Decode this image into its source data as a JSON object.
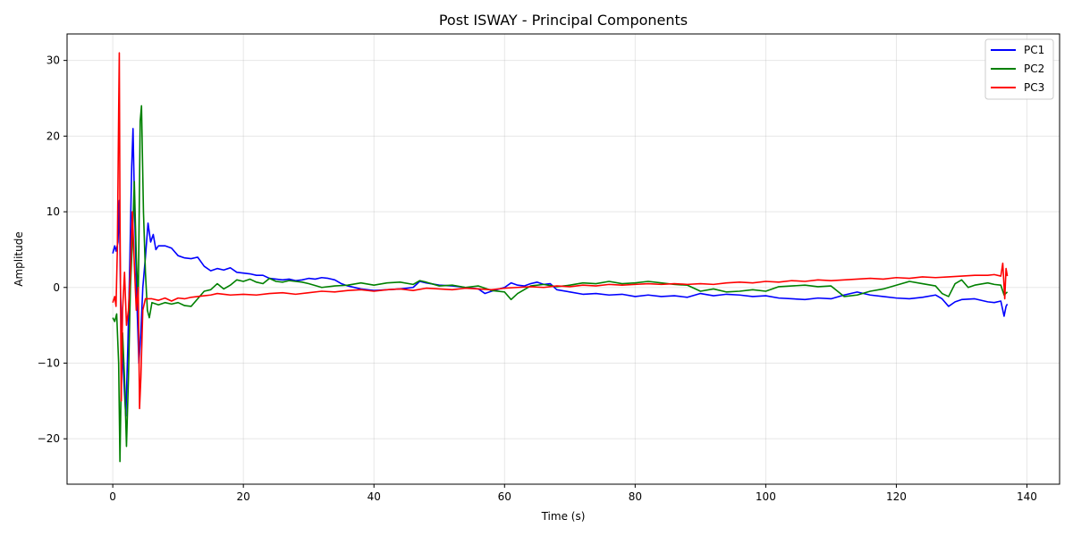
{
  "chart_data": {
    "type": "line",
    "title": "Post ISWAY - Principal Components",
    "xlabel": "Time (s)",
    "ylabel": "Amplitude",
    "xlim": [
      -7,
      145
    ],
    "ylim": [
      -26,
      33.5
    ],
    "xticks": [
      0,
      20,
      40,
      60,
      80,
      100,
      120,
      140
    ],
    "yticks": [
      -20,
      -10,
      0,
      10,
      20,
      30
    ],
    "xtick_labels": [
      "0",
      "20",
      "40",
      "60",
      "80",
      "100",
      "120",
      "140"
    ],
    "ytick_labels": [
      "−20",
      "−10",
      "0",
      "10",
      "20",
      "30"
    ],
    "grid": true,
    "legend": "top-right",
    "series": [
      {
        "name": "PC1",
        "color": "#0000ff",
        "points": [
          [
            0,
            4.5
          ],
          [
            0.3,
            5.5
          ],
          [
            0.5,
            4.8
          ],
          [
            0.8,
            6
          ],
          [
            1.0,
            11.5
          ],
          [
            1.2,
            -1
          ],
          [
            1.5,
            -9
          ],
          [
            1.8,
            -14
          ],
          [
            2.0,
            -17
          ],
          [
            2.3,
            -8
          ],
          [
            2.6,
            3
          ],
          [
            2.9,
            16
          ],
          [
            3.1,
            21
          ],
          [
            3.4,
            8
          ],
          [
            3.7,
            -2
          ],
          [
            4.0,
            -10
          ],
          [
            4.3,
            -6
          ],
          [
            4.6,
            0
          ],
          [
            5.0,
            4
          ],
          [
            5.4,
            8.5
          ],
          [
            5.8,
            6
          ],
          [
            6.2,
            7
          ],
          [
            6.6,
            5
          ],
          [
            7,
            5.5
          ],
          [
            8,
            5.5
          ],
          [
            9,
            5.2
          ],
          [
            10,
            4.2
          ],
          [
            11,
            3.9
          ],
          [
            12,
            3.8
          ],
          [
            13,
            4
          ],
          [
            14,
            2.8
          ],
          [
            15,
            2.2
          ],
          [
            16,
            2.5
          ],
          [
            17,
            2.3
          ],
          [
            18,
            2.6
          ],
          [
            19,
            2
          ],
          [
            20,
            1.9
          ],
          [
            21,
            1.8
          ],
          [
            22,
            1.6
          ],
          [
            23,
            1.6
          ],
          [
            24,
            1.2
          ],
          [
            25,
            1.1
          ],
          [
            26,
            1.0
          ],
          [
            27,
            1.1
          ],
          [
            28,
            0.9
          ],
          [
            29,
            1.0
          ],
          [
            30,
            1.2
          ],
          [
            31,
            1.1
          ],
          [
            32,
            1.3
          ],
          [
            33,
            1.2
          ],
          [
            34,
            1.0
          ],
          [
            35,
            0.5
          ],
          [
            36,
            0.2
          ],
          [
            38,
            -0.2
          ],
          [
            40,
            -0.4
          ],
          [
            42,
            -0.3
          ],
          [
            44,
            -0.2
          ],
          [
            46,
            0
          ],
          [
            47,
            0.8
          ],
          [
            48,
            0.6
          ],
          [
            50,
            0.3
          ],
          [
            52,
            0.2
          ],
          [
            54,
            0
          ],
          [
            56,
            -0.2
          ],
          [
            57,
            -0.8
          ],
          [
            58,
            -0.5
          ],
          [
            60,
            0
          ],
          [
            61,
            0.6
          ],
          [
            62,
            0.3
          ],
          [
            63,
            0.2
          ],
          [
            64,
            0.5
          ],
          [
            65,
            0.7
          ],
          [
            66,
            0.4
          ],
          [
            67,
            0.5
          ],
          [
            68,
            -0.3
          ],
          [
            70,
            -0.6
          ],
          [
            72,
            -0.9
          ],
          [
            74,
            -0.8
          ],
          [
            76,
            -1.0
          ],
          [
            78,
            -0.9
          ],
          [
            80,
            -1.2
          ],
          [
            82,
            -1.0
          ],
          [
            84,
            -1.2
          ],
          [
            86,
            -1.1
          ],
          [
            88,
            -1.3
          ],
          [
            90,
            -0.8
          ],
          [
            92,
            -1.1
          ],
          [
            94,
            -0.9
          ],
          [
            96,
            -1.0
          ],
          [
            98,
            -1.2
          ],
          [
            100,
            -1.1
          ],
          [
            102,
            -1.4
          ],
          [
            104,
            -1.5
          ],
          [
            106,
            -1.6
          ],
          [
            108,
            -1.4
          ],
          [
            110,
            -1.5
          ],
          [
            112,
            -1.0
          ],
          [
            114,
            -0.6
          ],
          [
            116,
            -1.0
          ],
          [
            118,
            -1.2
          ],
          [
            120,
            -1.4
          ],
          [
            122,
            -1.5
          ],
          [
            124,
            -1.3
          ],
          [
            126,
            -1.0
          ],
          [
            127,
            -1.5
          ],
          [
            128,
            -2.5
          ],
          [
            129,
            -1.9
          ],
          [
            130,
            -1.6
          ],
          [
            132,
            -1.5
          ],
          [
            134,
            -1.9
          ],
          [
            135,
            -2.0
          ],
          [
            136,
            -1.8
          ],
          [
            136.5,
            -3.8
          ],
          [
            136.8,
            -2.5
          ],
          [
            137,
            -2.2
          ]
        ]
      },
      {
        "name": "PC2",
        "color": "#008000",
        "points": [
          [
            0,
            -4
          ],
          [
            0.3,
            -4.5
          ],
          [
            0.6,
            -3.5
          ],
          [
            0.9,
            -10
          ],
          [
            1.1,
            -23
          ],
          [
            1.3,
            -12
          ],
          [
            1.5,
            -6
          ],
          [
            1.8,
            -12
          ],
          [
            2.1,
            -21
          ],
          [
            2.4,
            -12
          ],
          [
            2.7,
            0
          ],
          [
            3.0,
            6
          ],
          [
            3.3,
            14
          ],
          [
            3.6,
            4
          ],
          [
            3.9,
            -2
          ],
          [
            4.2,
            22
          ],
          [
            4.4,
            24
          ],
          [
            4.7,
            10
          ],
          [
            5.0,
            2
          ],
          [
            5.3,
            -3
          ],
          [
            5.6,
            -4
          ],
          [
            6,
            -2
          ],
          [
            7,
            -2.3
          ],
          [
            8,
            -2
          ],
          [
            9,
            -2.2
          ],
          [
            10,
            -2
          ],
          [
            11,
            -2.4
          ],
          [
            12,
            -2.5
          ],
          [
            13,
            -1.5
          ],
          [
            14,
            -0.5
          ],
          [
            15,
            -0.3
          ],
          [
            16,
            0.5
          ],
          [
            17,
            -0.2
          ],
          [
            18,
            0.3
          ],
          [
            19,
            1
          ],
          [
            20,
            0.8
          ],
          [
            21,
            1.1
          ],
          [
            22,
            0.7
          ],
          [
            23,
            0.5
          ],
          [
            24,
            1.2
          ],
          [
            25,
            0.8
          ],
          [
            26,
            0.7
          ],
          [
            27,
            0.9
          ],
          [
            28,
            0.8
          ],
          [
            29,
            0.7
          ],
          [
            30,
            0.5
          ],
          [
            32,
            0
          ],
          [
            34,
            0.2
          ],
          [
            36,
            0.3
          ],
          [
            38,
            0.6
          ],
          [
            40,
            0.3
          ],
          [
            42,
            0.6
          ],
          [
            44,
            0.7
          ],
          [
            46,
            0.4
          ],
          [
            47,
            0.9
          ],
          [
            48,
            0.7
          ],
          [
            50,
            0.2
          ],
          [
            52,
            0.3
          ],
          [
            54,
            0
          ],
          [
            56,
            0.2
          ],
          [
            58,
            -0.4
          ],
          [
            60,
            -0.6
          ],
          [
            61,
            -1.6
          ],
          [
            62,
            -0.8
          ],
          [
            63,
            -0.3
          ],
          [
            64,
            0.2
          ],
          [
            66,
            0.4
          ],
          [
            68,
            0.1
          ],
          [
            70,
            0.3
          ],
          [
            72,
            0.6
          ],
          [
            74,
            0.5
          ],
          [
            76,
            0.8
          ],
          [
            78,
            0.5
          ],
          [
            80,
            0.6
          ],
          [
            82,
            0.8
          ],
          [
            84,
            0.6
          ],
          [
            86,
            0.4
          ],
          [
            88,
            0.3
          ],
          [
            90,
            -0.5
          ],
          [
            92,
            -0.2
          ],
          [
            94,
            -0.6
          ],
          [
            96,
            -0.5
          ],
          [
            98,
            -0.3
          ],
          [
            100,
            -0.5
          ],
          [
            102,
            0.1
          ],
          [
            104,
            0.2
          ],
          [
            106,
            0.3
          ],
          [
            108,
            0.1
          ],
          [
            110,
            0.2
          ],
          [
            112,
            -1.2
          ],
          [
            114,
            -1.0
          ],
          [
            116,
            -0.5
          ],
          [
            118,
            -0.2
          ],
          [
            120,
            0.3
          ],
          [
            122,
            0.8
          ],
          [
            124,
            0.5
          ],
          [
            126,
            0.2
          ],
          [
            127,
            -0.8
          ],
          [
            128,
            -1.2
          ],
          [
            129,
            0.5
          ],
          [
            130,
            1.0
          ],
          [
            131,
            0
          ],
          [
            132,
            0.3
          ],
          [
            134,
            0.6
          ],
          [
            135,
            0.4
          ],
          [
            136,
            0.3
          ],
          [
            136.5,
            -1.0
          ],
          [
            137,
            -0.6
          ]
        ]
      },
      {
        "name": "PC3",
        "color": "#ff0000",
        "points": [
          [
            0,
            -2
          ],
          [
            0.3,
            -1.2
          ],
          [
            0.5,
            -2.5
          ],
          [
            0.7,
            5
          ],
          [
            0.9,
            23
          ],
          [
            1.0,
            31
          ],
          [
            1.1,
            10
          ],
          [
            1.3,
            -15
          ],
          [
            1.5,
            -3
          ],
          [
            1.8,
            2
          ],
          [
            2.1,
            -5
          ],
          [
            2.4,
            -3
          ],
          [
            2.7,
            2
          ],
          [
            3.0,
            10
          ],
          [
            3.3,
            3
          ],
          [
            3.6,
            -3
          ],
          [
            3.9,
            0
          ],
          [
            4.1,
            -16
          ],
          [
            4.3,
            -12
          ],
          [
            4.6,
            -3
          ],
          [
            5,
            -1.5
          ],
          [
            6,
            -1.5
          ],
          [
            7,
            -1.7
          ],
          [
            8,
            -1.4
          ],
          [
            9,
            -1.8
          ],
          [
            10,
            -1.4
          ],
          [
            11,
            -1.5
          ],
          [
            12,
            -1.3
          ],
          [
            13,
            -1.2
          ],
          [
            14,
            -1.1
          ],
          [
            15,
            -1.0
          ],
          [
            16,
            -0.8
          ],
          [
            18,
            -1.0
          ],
          [
            20,
            -0.9
          ],
          [
            22,
            -1.0
          ],
          [
            24,
            -0.8
          ],
          [
            26,
            -0.7
          ],
          [
            28,
            -0.9
          ],
          [
            30,
            -0.7
          ],
          [
            32,
            -0.5
          ],
          [
            34,
            -0.6
          ],
          [
            36,
            -0.4
          ],
          [
            38,
            -0.3
          ],
          [
            40,
            -0.5
          ],
          [
            42,
            -0.3
          ],
          [
            44,
            -0.2
          ],
          [
            46,
            -0.4
          ],
          [
            48,
            -0.1
          ],
          [
            50,
            -0.2
          ],
          [
            52,
            -0.3
          ],
          [
            54,
            -0.1
          ],
          [
            56,
            -0.2
          ],
          [
            58,
            -0.3
          ],
          [
            60,
            -0.1
          ],
          [
            62,
            0
          ],
          [
            64,
            0.1
          ],
          [
            66,
            0
          ],
          [
            68,
            0.2
          ],
          [
            70,
            0.1
          ],
          [
            72,
            0.3
          ],
          [
            74,
            0.2
          ],
          [
            76,
            0.4
          ],
          [
            78,
            0.3
          ],
          [
            80,
            0.4
          ],
          [
            82,
            0.5
          ],
          [
            84,
            0.4
          ],
          [
            86,
            0.5
          ],
          [
            88,
            0.4
          ],
          [
            90,
            0.5
          ],
          [
            92,
            0.4
          ],
          [
            94,
            0.6
          ],
          [
            96,
            0.7
          ],
          [
            98,
            0.6
          ],
          [
            100,
            0.8
          ],
          [
            102,
            0.7
          ],
          [
            104,
            0.9
          ],
          [
            106,
            0.8
          ],
          [
            108,
            1.0
          ],
          [
            110,
            0.9
          ],
          [
            112,
            1.0
          ],
          [
            114,
            1.1
          ],
          [
            116,
            1.2
          ],
          [
            118,
            1.1
          ],
          [
            120,
            1.3
          ],
          [
            122,
            1.2
          ],
          [
            124,
            1.4
          ],
          [
            126,
            1.3
          ],
          [
            128,
            1.4
          ],
          [
            130,
            1.5
          ],
          [
            132,
            1.6
          ],
          [
            134,
            1.6
          ],
          [
            135,
            1.7
          ],
          [
            136,
            1.5
          ],
          [
            136.3,
            3.2
          ],
          [
            136.6,
            -1.5
          ],
          [
            136.8,
            2.5
          ],
          [
            137,
            1.5
          ]
        ]
      }
    ]
  }
}
